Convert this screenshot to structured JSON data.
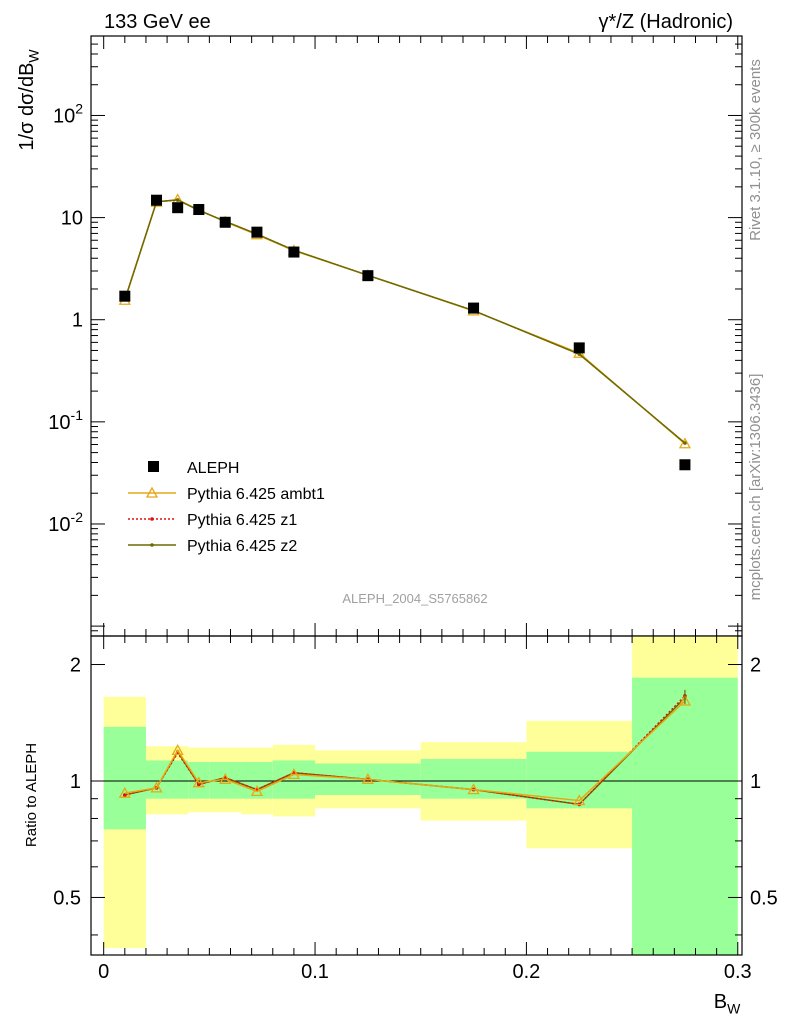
{
  "header": {
    "left": "133 GeV ee",
    "right": "γ*/Z (Hadronic)"
  },
  "side": {
    "rivet": "Rivet 3.1.10, ≥ 300k events",
    "mcplots": "mcplots.cern.ch [arXiv:1306.3436]"
  },
  "watermark": "ALEPH_2004_S5765862",
  "axes": {
    "main_ylabel": "1/σ  dσ/dB_W",
    "ratio_ylabel": "Ratio to ALEPH",
    "xlabel": "B_W"
  },
  "legend": [
    {
      "label": "ALEPH",
      "color": "#000000",
      "style": "marker-square"
    },
    {
      "label": "Pythia 6.425 ambt1",
      "color": "#e6a817",
      "style": "line-triangle"
    },
    {
      "label": "Pythia 6.425 z1",
      "color": "#e01010",
      "style": "dotted-dot"
    },
    {
      "label": "Pythia 6.425 z2",
      "color": "#6b6b00",
      "style": "line-dot"
    }
  ],
  "colors": {
    "band_inner": "#99ff99",
    "band_outer": "#ffff99",
    "ambt1": "#e6a817",
    "z1": "#e01010",
    "z2": "#6b6b00"
  },
  "chart_data": [
    {
      "type": "line",
      "panel": "main",
      "yscale": "log",
      "xlim": [
        -0.006,
        0.302
      ],
      "ylim": [
        0.0008,
        600
      ],
      "x_ticks": [
        "0",
        "0.1",
        "0.2",
        "0.3"
      ],
      "y_tick_labels": [
        {
          "v": 100,
          "t": "10^2"
        },
        {
          "v": 10,
          "t": "10"
        },
        {
          "v": 1,
          "t": "1"
        },
        {
          "v": 0.1,
          "t": "10^-1"
        },
        {
          "v": 0.01,
          "t": "10^-2"
        }
      ],
      "x": [
        0.01,
        0.025,
        0.035,
        0.045,
        0.0575,
        0.0725,
        0.09,
        0.125,
        0.175,
        0.225,
        0.275
      ],
      "series": [
        {
          "name": "ALEPH",
          "values": [
            1.7,
            14.8,
            12.5,
            12.0,
            9.0,
            7.2,
            4.6,
            2.7,
            1.3,
            0.53,
            0.038
          ]
        },
        {
          "name": "Pythia 6.425 ambt1",
          "values": [
            1.55,
            14.2,
            15.0,
            11.9,
            9.1,
            6.8,
            4.75,
            2.72,
            1.22,
            0.47,
            0.061
          ]
        },
        {
          "name": "Pythia 6.425 z1",
          "values": [
            1.57,
            14.3,
            14.8,
            11.8,
            9.2,
            6.9,
            4.8,
            2.72,
            1.23,
            0.46,
            0.062
          ]
        },
        {
          "name": "Pythia 6.425 z2",
          "values": [
            1.57,
            14.3,
            14.9,
            11.8,
            9.2,
            6.9,
            4.8,
            2.72,
            1.23,
            0.46,
            0.062
          ]
        }
      ]
    },
    {
      "type": "line",
      "panel": "ratio",
      "yscale": "log",
      "xlim": [
        -0.006,
        0.302
      ],
      "ylim": [
        0.355,
        2.37
      ],
      "x_ticks": [
        "0",
        "0.1",
        "0.2",
        "0.3"
      ],
      "y_ticks": [
        "0.5",
        "1",
        "2"
      ],
      "bins": [
        {
          "lo": 0.0,
          "hi": 0.02,
          "inner": [
            0.75,
            1.38
          ],
          "outer": [
            0.37,
            1.65
          ]
        },
        {
          "lo": 0.02,
          "hi": 0.04,
          "inner": [
            0.9,
            1.13
          ],
          "outer": [
            0.82,
            1.23
          ]
        },
        {
          "lo": 0.04,
          "hi": 0.05,
          "inner": [
            0.9,
            1.12
          ],
          "outer": [
            0.83,
            1.22
          ]
        },
        {
          "lo": 0.05,
          "hi": 0.065,
          "inner": [
            0.9,
            1.12
          ],
          "outer": [
            0.83,
            1.22
          ]
        },
        {
          "lo": 0.065,
          "hi": 0.08,
          "inner": [
            0.9,
            1.12
          ],
          "outer": [
            0.82,
            1.22
          ]
        },
        {
          "lo": 0.08,
          "hi": 0.1,
          "inner": [
            0.9,
            1.13
          ],
          "outer": [
            0.81,
            1.24
          ]
        },
        {
          "lo": 0.1,
          "hi": 0.15,
          "inner": [
            0.92,
            1.11
          ],
          "outer": [
            0.85,
            1.2
          ]
        },
        {
          "lo": 0.15,
          "hi": 0.2,
          "inner": [
            0.9,
            1.14
          ],
          "outer": [
            0.79,
            1.26
          ]
        },
        {
          "lo": 0.2,
          "hi": 0.25,
          "inner": [
            0.85,
            1.19
          ],
          "outer": [
            0.67,
            1.43
          ]
        },
        {
          "lo": 0.25,
          "hi": 0.3,
          "inner": [
            0.355,
            1.85
          ],
          "outer": [
            0.355,
            2.37
          ]
        }
      ],
      "x": [
        0.01,
        0.025,
        0.035,
        0.045,
        0.0575,
        0.0725,
        0.09,
        0.125,
        0.175,
        0.225,
        0.275
      ],
      "series": [
        {
          "name": "Pythia 6.425 ambt1",
          "values": [
            0.93,
            0.96,
            1.2,
            0.99,
            1.01,
            0.94,
            1.04,
            1.01,
            0.95,
            0.89,
            1.61
          ]
        },
        {
          "name": "Pythia 6.425 z1",
          "values": [
            0.92,
            0.96,
            1.18,
            0.98,
            1.02,
            0.95,
            1.05,
            1.01,
            0.95,
            0.87,
            1.66
          ]
        },
        {
          "name": "Pythia 6.425 z2",
          "values": [
            0.92,
            0.96,
            1.19,
            0.98,
            1.02,
            0.95,
            1.05,
            1.01,
            0.95,
            0.87,
            1.64
          ]
        }
      ]
    }
  ]
}
